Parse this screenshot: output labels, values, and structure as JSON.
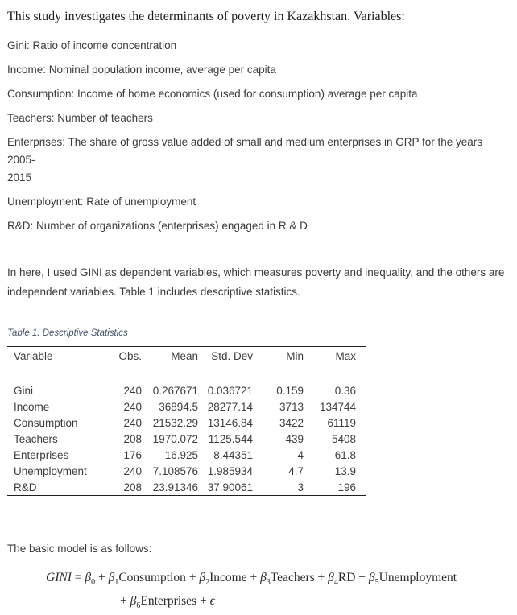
{
  "document": {
    "intro": "This study investigates the determinants of poverty in Kazakhstan. Variables:",
    "definitions": [
      {
        "lines": [
          "Gini: Ratio of income concentration"
        ]
      },
      {
        "lines": [
          "Income: Nominal population income, average per capita"
        ]
      },
      {
        "lines": [
          "Consumption: Income of home economics (used for consumption) average per capita"
        ]
      },
      {
        "lines": [
          "Teachers: Number of teachers"
        ]
      },
      {
        "lines": [
          "Enterprises: The share of gross value added of small and medium enterprises in GRP for the years 2005-",
          "2015"
        ]
      },
      {
        "lines": [
          "Unemployment: Rate of unemployment"
        ]
      },
      {
        "lines": [
          "R&D: Number of organizations (enterprises) engaged in R & D"
        ]
      }
    ],
    "body_paragraph": {
      "lines": [
        "In here, I used GINI as dependent variables, which measures poverty and inequality, and the others are",
        "independent variables. Table 1 includes descriptive statistics."
      ]
    },
    "table_caption": "Table 1. Descriptive Statistics",
    "model_intro": "The basic model is as follows:",
    "colors": {
      "caption_text": "#44546A",
      "body_text": "#3a3a3a",
      "table_rule": "#1f1f1f"
    }
  },
  "table": {
    "columns": [
      "Variable",
      "Obs.",
      "Mean",
      "Std. Dev",
      "Min",
      "Max"
    ],
    "rows": [
      [
        "Gini",
        "240",
        "0.267671",
        "0.036721",
        "0.159",
        "0.36"
      ],
      [
        "Income",
        "240",
        "36894.5",
        "28277.14",
        "3713",
        "134744"
      ],
      [
        "Consumption",
        "240",
        "21532.29",
        "13146.84",
        "3422",
        "61119"
      ],
      [
        "Teachers",
        "208",
        "1970.072",
        "1125.544",
        "439",
        "5408"
      ],
      [
        "Enterprises",
        "176",
        "16.925",
        "8.44351",
        "4",
        "61.8"
      ],
      [
        "Unemployment",
        "240",
        "7.108576",
        "1.985934",
        "4.7",
        "13.9"
      ],
      [
        "R&D",
        "208",
        "23.91346",
        "37.90061",
        "3",
        "196"
      ]
    ]
  },
  "formula": {
    "line1_segments": [
      {
        "text": "GINI",
        "italic": true
      },
      {
        "text": " = ",
        "italic": false
      },
      {
        "text": "β",
        "italic": true
      },
      {
        "text": "0",
        "sub": true
      },
      {
        "text": " + ",
        "italic": false
      },
      {
        "text": "β",
        "italic": true
      },
      {
        "text": "1",
        "sub": true
      },
      {
        "text": "Consumption +  ",
        "italic": false
      },
      {
        "text": "β",
        "italic": true
      },
      {
        "text": "2",
        "sub": true
      },
      {
        "text": "Income + ",
        "italic": false
      },
      {
        "text": "β",
        "italic": true
      },
      {
        "text": "3",
        "sub": true
      },
      {
        "text": "Teachers + ",
        "italic": false
      },
      {
        "text": "β",
        "italic": true
      },
      {
        "text": "4",
        "sub": true
      },
      {
        "text": "RD + ",
        "italic": false
      },
      {
        "text": "β",
        "italic": true
      },
      {
        "text": "5",
        "sub": true
      },
      {
        "text": "Unemployment",
        "italic": false
      }
    ],
    "line2_segments": [
      {
        "text": "+ ",
        "italic": false
      },
      {
        "text": "β",
        "italic": true
      },
      {
        "text": "6",
        "sub": true
      },
      {
        "text": "Enterprises ",
        "italic": false
      },
      {
        "text": "+ ",
        "italic": false
      },
      {
        "text": "ϵ",
        "italic": true
      }
    ]
  }
}
